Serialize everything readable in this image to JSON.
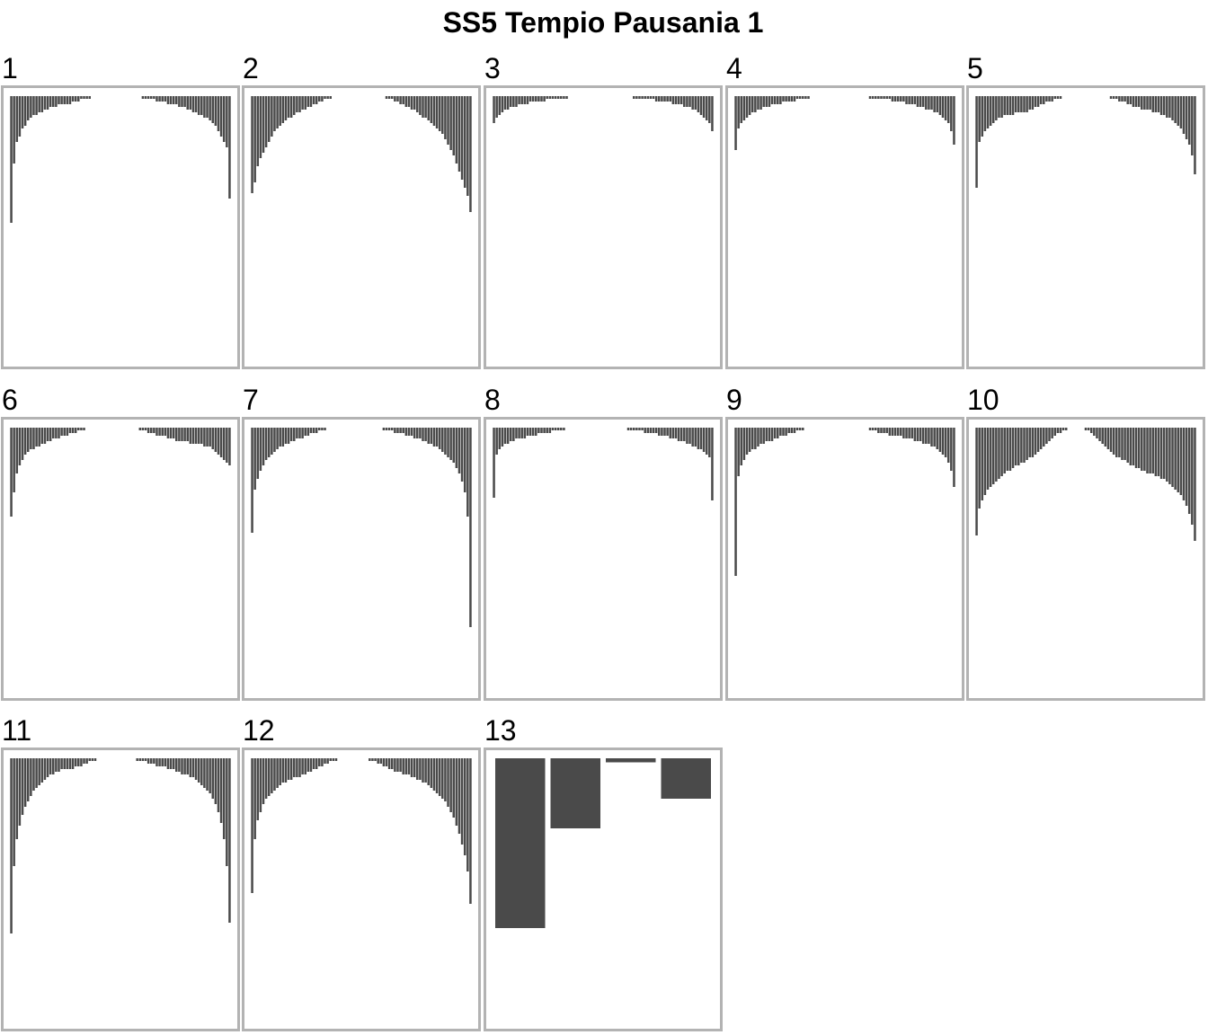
{
  "chart_data": {
    "type": "bar",
    "title": "SS5 Tempio Pausania 1",
    "xlabel": "",
    "ylabel": "",
    "panels": [
      {
        "label": "1",
        "values": [
          0.47,
          0.25,
          0.17,
          0.15,
          0.12,
          0.11,
          0.09,
          0.08,
          0.07,
          0.07,
          0.06,
          0.06,
          0.05,
          0.05,
          0.04,
          0.04,
          0.04,
          0.03,
          0.03,
          0.03,
          0.03,
          0.03,
          0.02,
          0.02,
          0.02,
          0.01,
          0.01,
          0.01,
          0.01,
          0.0,
          0.0,
          0.0,
          0.0,
          0.0,
          0.0,
          0.0,
          0.0,
          0.0,
          0.0,
          0.0,
          0.0,
          0.0,
          0.0,
          0.0,
          0.0,
          0.0,
          0.0,
          0.01,
          0.01,
          0.01,
          0.01,
          0.01,
          0.02,
          0.02,
          0.02,
          0.02,
          0.03,
          0.03,
          0.03,
          0.03,
          0.04,
          0.04,
          0.04,
          0.05,
          0.05,
          0.06,
          0.06,
          0.07,
          0.07,
          0.08,
          0.08,
          0.09,
          0.1,
          0.11,
          0.13,
          0.15,
          0.17,
          0.19,
          0.38
        ]
      },
      {
        "label": "2",
        "values": [
          0.36,
          0.32,
          0.26,
          0.23,
          0.21,
          0.19,
          0.17,
          0.15,
          0.13,
          0.12,
          0.11,
          0.1,
          0.09,
          0.08,
          0.08,
          0.07,
          0.06,
          0.06,
          0.05,
          0.05,
          0.04,
          0.04,
          0.03,
          0.03,
          0.02,
          0.02,
          0.01,
          0.01,
          0.01,
          0.0,
          0.0,
          0.0,
          0.0,
          0.0,
          0.0,
          0.0,
          0.0,
          0.0,
          0.0,
          0.0,
          0.0,
          0.0,
          0.0,
          0.0,
          0.0,
          0.0,
          0.0,
          0.0,
          0.01,
          0.01,
          0.01,
          0.02,
          0.02,
          0.03,
          0.03,
          0.04,
          0.04,
          0.05,
          0.05,
          0.06,
          0.07,
          0.08,
          0.08,
          0.09,
          0.1,
          0.11,
          0.12,
          0.13,
          0.14,
          0.16,
          0.18,
          0.2,
          0.22,
          0.25,
          0.28,
          0.31,
          0.34,
          0.37,
          0.43
        ]
      },
      {
        "label": "3",
        "values": [
          0.1,
          0.08,
          0.07,
          0.06,
          0.05,
          0.05,
          0.04,
          0.04,
          0.04,
          0.03,
          0.03,
          0.03,
          0.03,
          0.02,
          0.02,
          0.02,
          0.02,
          0.02,
          0.02,
          0.01,
          0.01,
          0.01,
          0.01,
          0.01,
          0.01,
          0.01,
          0.01,
          0.0,
          0.0,
          0.0,
          0.0,
          0.0,
          0.0,
          0.0,
          0.0,
          0.0,
          0.0,
          0.0,
          0.0,
          0.0,
          0.0,
          0.0,
          0.0,
          0.0,
          0.0,
          0.0,
          0.0,
          0.0,
          0.0,
          0.0,
          0.01,
          0.01,
          0.01,
          0.01,
          0.01,
          0.01,
          0.01,
          0.01,
          0.02,
          0.02,
          0.02,
          0.02,
          0.02,
          0.02,
          0.03,
          0.03,
          0.03,
          0.03,
          0.04,
          0.04,
          0.04,
          0.05,
          0.05,
          0.06,
          0.07,
          0.08,
          0.09,
          0.1,
          0.13
        ]
      },
      {
        "label": "4",
        "values": [
          0.2,
          0.12,
          0.1,
          0.09,
          0.08,
          0.07,
          0.06,
          0.06,
          0.05,
          0.05,
          0.04,
          0.04,
          0.04,
          0.03,
          0.03,
          0.03,
          0.03,
          0.02,
          0.02,
          0.02,
          0.02,
          0.02,
          0.01,
          0.01,
          0.01,
          0.01,
          0.01,
          0.0,
          0.0,
          0.0,
          0.0,
          0.0,
          0.0,
          0.0,
          0.0,
          0.0,
          0.0,
          0.0,
          0.0,
          0.0,
          0.0,
          0.0,
          0.0,
          0.0,
          0.0,
          0.0,
          0.0,
          0.0,
          0.01,
          0.01,
          0.01,
          0.01,
          0.01,
          0.01,
          0.01,
          0.01,
          0.02,
          0.02,
          0.02,
          0.02,
          0.02,
          0.03,
          0.03,
          0.03,
          0.03,
          0.04,
          0.04,
          0.04,
          0.05,
          0.05,
          0.05,
          0.06,
          0.06,
          0.07,
          0.08,
          0.09,
          0.1,
          0.13,
          0.18
        ]
      },
      {
        "label": "5",
        "values": [
          0.34,
          0.17,
          0.15,
          0.13,
          0.12,
          0.11,
          0.1,
          0.09,
          0.08,
          0.08,
          0.07,
          0.07,
          0.07,
          0.07,
          0.06,
          0.06,
          0.06,
          0.06,
          0.06,
          0.05,
          0.05,
          0.04,
          0.04,
          0.03,
          0.03,
          0.02,
          0.02,
          0.02,
          0.01,
          0.01,
          0.01,
          0.0,
          0.0,
          0.0,
          0.0,
          0.0,
          0.0,
          0.0,
          0.0,
          0.0,
          0.0,
          0.0,
          0.0,
          0.0,
          0.0,
          0.0,
          0.0,
          0.0,
          0.01,
          0.01,
          0.01,
          0.02,
          0.02,
          0.02,
          0.03,
          0.03,
          0.04,
          0.04,
          0.04,
          0.05,
          0.05,
          0.05,
          0.05,
          0.06,
          0.06,
          0.06,
          0.07,
          0.07,
          0.08,
          0.08,
          0.09,
          0.1,
          0.11,
          0.12,
          0.14,
          0.16,
          0.18,
          0.22,
          0.29
        ]
      },
      {
        "label": "6",
        "values": [
          0.33,
          0.24,
          0.17,
          0.14,
          0.12,
          0.1,
          0.09,
          0.08,
          0.08,
          0.07,
          0.07,
          0.06,
          0.06,
          0.05,
          0.05,
          0.04,
          0.04,
          0.04,
          0.03,
          0.03,
          0.03,
          0.02,
          0.02,
          0.02,
          0.01,
          0.01,
          0.01,
          0.0,
          0.0,
          0.0,
          0.0,
          0.0,
          0.0,
          0.0,
          0.0,
          0.0,
          0.0,
          0.0,
          0.0,
          0.0,
          0.0,
          0.0,
          0.0,
          0.0,
          0.0,
          0.0,
          0.01,
          0.01,
          0.01,
          0.02,
          0.02,
          0.02,
          0.03,
          0.03,
          0.03,
          0.03,
          0.04,
          0.04,
          0.04,
          0.05,
          0.05,
          0.05,
          0.05,
          0.05,
          0.06,
          0.06,
          0.06,
          0.06,
          0.06,
          0.07,
          0.07,
          0.07,
          0.08,
          0.09,
          0.1,
          0.11,
          0.12,
          0.13,
          0.14
        ]
      },
      {
        "label": "7",
        "values": [
          0.39,
          0.23,
          0.19,
          0.16,
          0.14,
          0.12,
          0.11,
          0.1,
          0.09,
          0.08,
          0.07,
          0.07,
          0.06,
          0.06,
          0.05,
          0.05,
          0.04,
          0.04,
          0.04,
          0.03,
          0.03,
          0.02,
          0.02,
          0.02,
          0.01,
          0.01,
          0.01,
          0.0,
          0.0,
          0.0,
          0.0,
          0.0,
          0.0,
          0.0,
          0.0,
          0.0,
          0.0,
          0.0,
          0.0,
          0.0,
          0.0,
          0.0,
          0.0,
          0.0,
          0.0,
          0.0,
          0.0,
          0.01,
          0.01,
          0.01,
          0.01,
          0.02,
          0.02,
          0.02,
          0.02,
          0.03,
          0.03,
          0.03,
          0.04,
          0.04,
          0.04,
          0.05,
          0.05,
          0.06,
          0.06,
          0.07,
          0.07,
          0.08,
          0.09,
          0.1,
          0.11,
          0.12,
          0.13,
          0.15,
          0.17,
          0.2,
          0.24,
          0.33,
          0.74
        ]
      },
      {
        "label": "8",
        "values": [
          0.26,
          0.1,
          0.08,
          0.07,
          0.06,
          0.06,
          0.05,
          0.05,
          0.04,
          0.04,
          0.04,
          0.04,
          0.03,
          0.03,
          0.03,
          0.03,
          0.02,
          0.02,
          0.02,
          0.02,
          0.02,
          0.01,
          0.01,
          0.01,
          0.01,
          0.01,
          0.0,
          0.0,
          0.0,
          0.0,
          0.0,
          0.0,
          0.0,
          0.0,
          0.0,
          0.0,
          0.0,
          0.0,
          0.0,
          0.0,
          0.0,
          0.0,
          0.0,
          0.0,
          0.0,
          0.0,
          0.0,
          0.0,
          0.01,
          0.01,
          0.01,
          0.01,
          0.01,
          0.01,
          0.02,
          0.02,
          0.02,
          0.02,
          0.02,
          0.03,
          0.03,
          0.03,
          0.03,
          0.04,
          0.04,
          0.04,
          0.05,
          0.05,
          0.05,
          0.06,
          0.06,
          0.07,
          0.07,
          0.08,
          0.08,
          0.09,
          0.1,
          0.11,
          0.27
        ]
      },
      {
        "label": "9",
        "values": [
          0.55,
          0.18,
          0.14,
          0.12,
          0.1,
          0.09,
          0.08,
          0.08,
          0.07,
          0.06,
          0.06,
          0.05,
          0.05,
          0.05,
          0.04,
          0.04,
          0.03,
          0.03,
          0.03,
          0.02,
          0.02,
          0.02,
          0.01,
          0.01,
          0.01,
          0.0,
          0.0,
          0.0,
          0.0,
          0.0,
          0.0,
          0.0,
          0.0,
          0.0,
          0.0,
          0.0,
          0.0,
          0.0,
          0.0,
          0.0,
          0.0,
          0.0,
          0.0,
          0.0,
          0.0,
          0.0,
          0.0,
          0.0,
          0.01,
          0.01,
          0.01,
          0.02,
          0.02,
          0.02,
          0.02,
          0.03,
          0.03,
          0.03,
          0.03,
          0.03,
          0.04,
          0.04,
          0.04,
          0.04,
          0.05,
          0.05,
          0.05,
          0.06,
          0.06,
          0.06,
          0.07,
          0.07,
          0.08,
          0.09,
          0.1,
          0.11,
          0.13,
          0.16,
          0.22
        ]
      },
      {
        "label": "10",
        "values": [
          0.4,
          0.3,
          0.27,
          0.25,
          0.23,
          0.22,
          0.21,
          0.2,
          0.19,
          0.18,
          0.17,
          0.16,
          0.16,
          0.15,
          0.14,
          0.14,
          0.13,
          0.13,
          0.12,
          0.11,
          0.11,
          0.1,
          0.09,
          0.08,
          0.07,
          0.06,
          0.05,
          0.04,
          0.03,
          0.02,
          0.02,
          0.01,
          0.01,
          0.0,
          0.0,
          0.0,
          0.0,
          0.0,
          0.0,
          0.01,
          0.01,
          0.02,
          0.03,
          0.04,
          0.05,
          0.06,
          0.07,
          0.08,
          0.09,
          0.1,
          0.11,
          0.11,
          0.12,
          0.12,
          0.13,
          0.14,
          0.14,
          0.15,
          0.15,
          0.16,
          0.16,
          0.17,
          0.17,
          0.17,
          0.18,
          0.18,
          0.19,
          0.19,
          0.2,
          0.21,
          0.22,
          0.23,
          0.24,
          0.25,
          0.27,
          0.29,
          0.32,
          0.36,
          0.42
        ]
      },
      {
        "label": "11",
        "values": [
          0.65,
          0.4,
          0.3,
          0.25,
          0.21,
          0.18,
          0.16,
          0.14,
          0.12,
          0.11,
          0.1,
          0.09,
          0.08,
          0.07,
          0.06,
          0.06,
          0.05,
          0.05,
          0.04,
          0.04,
          0.04,
          0.04,
          0.04,
          0.03,
          0.03,
          0.03,
          0.02,
          0.02,
          0.01,
          0.01,
          0.01,
          0.0,
          0.0,
          0.0,
          0.0,
          0.0,
          0.0,
          0.0,
          0.0,
          0.0,
          0.0,
          0.0,
          0.0,
          0.0,
          0.0,
          0.01,
          0.01,
          0.01,
          0.01,
          0.02,
          0.02,
          0.02,
          0.03,
          0.03,
          0.03,
          0.03,
          0.04,
          0.04,
          0.04,
          0.05,
          0.05,
          0.06,
          0.06,
          0.06,
          0.07,
          0.07,
          0.08,
          0.09,
          0.1,
          0.11,
          0.12,
          0.13,
          0.15,
          0.17,
          0.2,
          0.24,
          0.3,
          0.4,
          0.61
        ]
      },
      {
        "label": "12",
        "values": [
          0.5,
          0.3,
          0.23,
          0.2,
          0.17,
          0.15,
          0.14,
          0.13,
          0.12,
          0.11,
          0.1,
          0.09,
          0.09,
          0.08,
          0.08,
          0.07,
          0.07,
          0.07,
          0.06,
          0.06,
          0.05,
          0.05,
          0.04,
          0.04,
          0.03,
          0.03,
          0.02,
          0.02,
          0.01,
          0.01,
          0.01,
          0.0,
          0.0,
          0.0,
          0.0,
          0.0,
          0.0,
          0.0,
          0.0,
          0.0,
          0.0,
          0.0,
          0.01,
          0.01,
          0.01,
          0.02,
          0.02,
          0.03,
          0.03,
          0.04,
          0.04,
          0.05,
          0.05,
          0.05,
          0.06,
          0.06,
          0.06,
          0.07,
          0.07,
          0.08,
          0.08,
          0.09,
          0.09,
          0.1,
          0.11,
          0.12,
          0.13,
          0.14,
          0.15,
          0.16,
          0.18,
          0.2,
          0.22,
          0.25,
          0.28,
          0.32,
          0.36,
          0.42,
          0.54
        ]
      },
      {
        "label": "13",
        "values": [
          0.63,
          0.26,
          0.015,
          0.15
        ]
      }
    ],
    "ylim": [
      0,
      1
    ],
    "grid": false,
    "legend": "none",
    "colors": {
      "bar": "#4a4a4a",
      "frame": "#b3b3b3",
      "background": "#ffffff"
    }
  }
}
